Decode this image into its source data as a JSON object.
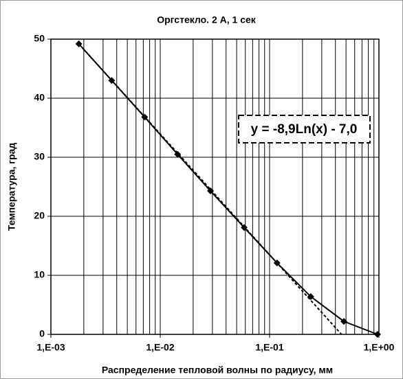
{
  "chart_data": {
    "type": "line",
    "title": "Оргстекло. 2 А, 1 сек",
    "x_label": "Распределение тепловой волны по радиусу, мм",
    "y_label": "Температура, град",
    "x_scale": "log",
    "x": [
      0.0018,
      0.0036,
      0.0072,
      0.0144,
      0.0288,
      0.0585,
      0.117,
      0.238,
      0.478,
      0.97
    ],
    "series": [
      {
        "color": "#000000",
        "values": [
          49.2,
          43,
          36.8,
          30.5,
          24.3,
          18.1,
          12.1,
          6.4,
          2.2,
          0
        ]
      }
    ],
    "trendline": {
      "color": "#000000",
      "x": [
        0.0018,
        0.455
      ],
      "values": [
        49.2,
        0
      ]
    },
    "annotation": "y = -8,9Ln(x) - 7,0",
    "xlim": [
      0.001,
      1
    ],
    "xticks": [
      {
        "value": 0.001,
        "label": "1,E-03"
      },
      {
        "value": 0.01,
        "label": "1,E-02"
      },
      {
        "value": 0.1,
        "label": "1,E-01"
      },
      {
        "value": 1,
        "label": "1,E+00"
      }
    ],
    "ylim": [
      0,
      50
    ],
    "yticks": [
      0,
      10,
      20,
      30,
      40,
      50
    ],
    "grid": true,
    "minor_grid": true
  }
}
